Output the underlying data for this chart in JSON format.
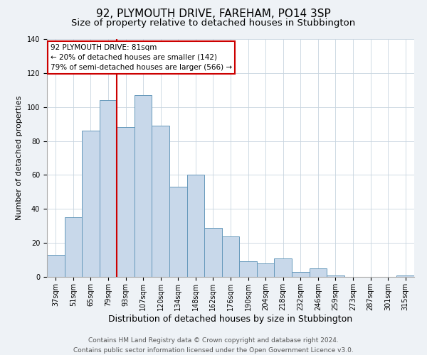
{
  "title": "92, PLYMOUTH DRIVE, FAREHAM, PO14 3SP",
  "subtitle": "Size of property relative to detached houses in Stubbington",
  "xlabel": "Distribution of detached houses by size in Stubbington",
  "ylabel": "Number of detached properties",
  "bar_labels": [
    "37sqm",
    "51sqm",
    "65sqm",
    "79sqm",
    "93sqm",
    "107sqm",
    "120sqm",
    "134sqm",
    "148sqm",
    "162sqm",
    "176sqm",
    "190sqm",
    "204sqm",
    "218sqm",
    "232sqm",
    "246sqm",
    "259sqm",
    "273sqm",
    "287sqm",
    "301sqm",
    "315sqm"
  ],
  "bar_heights": [
    13,
    35,
    86,
    104,
    88,
    107,
    89,
    53,
    60,
    29,
    24,
    9,
    8,
    11,
    3,
    5,
    1,
    0,
    0,
    0,
    1
  ],
  "bar_color": "#c8d8ea",
  "bar_edge_color": "#6699bb",
  "vline_x_index": 4,
  "vline_color": "#cc0000",
  "ylim": [
    0,
    140
  ],
  "yticks": [
    0,
    20,
    40,
    60,
    80,
    100,
    120,
    140
  ],
  "annotation_title": "92 PLYMOUTH DRIVE: 81sqm",
  "annotation_line1": "← 20% of detached houses are smaller (142)",
  "annotation_line2": "79% of semi-detached houses are larger (566) →",
  "annotation_box_color": "#ffffff",
  "annotation_box_edge": "#cc0000",
  "footer_line1": "Contains HM Land Registry data © Crown copyright and database right 2024.",
  "footer_line2": "Contains public sector information licensed under the Open Government Licence v3.0.",
  "background_color": "#eef2f6",
  "plot_background": "#ffffff",
  "title_fontsize": 11,
  "subtitle_fontsize": 9.5,
  "xlabel_fontsize": 9,
  "ylabel_fontsize": 8,
  "tick_fontsize": 7,
  "footer_fontsize": 6.5,
  "annotation_fontsize": 7.5
}
